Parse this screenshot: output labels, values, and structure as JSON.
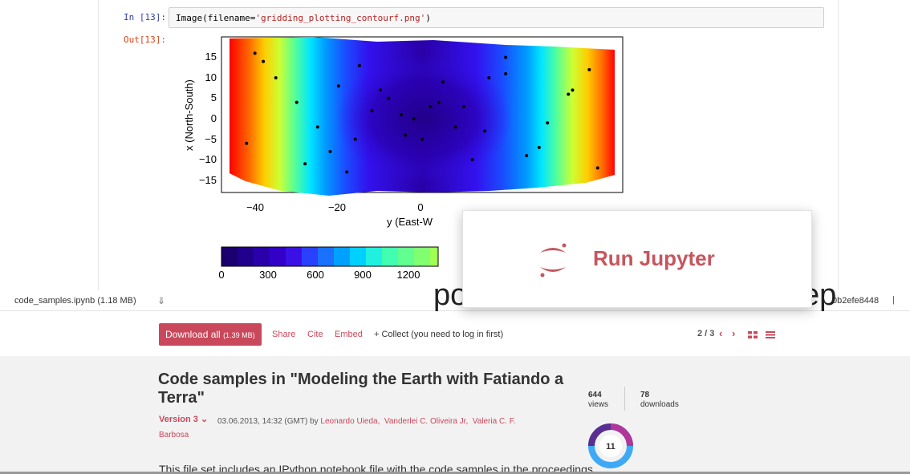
{
  "notebook": {
    "in_prompt": "In [13]:",
    "out_prompt": "Out[13]:",
    "code_prefix": "Image(filename=",
    "code_string": "'gridding_plotting_contourf.png'",
    "code_suffix": ")"
  },
  "plot": {
    "xlabel": "y (East-W",
    "ylabel": "x (North-South)",
    "xticks": [
      "−40",
      "−20",
      "0"
    ],
    "yticks": [
      "15",
      "10",
      "5",
      "0",
      "−5",
      "−10",
      "−15"
    ],
    "colorbar_ticks": [
      "0",
      "300",
      "600",
      "900",
      "1200"
    ]
  },
  "chart_data": {
    "type": "heatmap",
    "title": "",
    "xlabel": "y (East-W",
    "ylabel": "x (North-South)",
    "xlim": [
      -48,
      48
    ],
    "ylim": [
      -19,
      19
    ],
    "colorbar_range": [
      0,
      1500
    ],
    "colorbar_ticks": [
      0,
      300,
      600,
      900,
      1200
    ],
    "colormap": "jet",
    "grid": false,
    "points_x": [
      -40,
      -35,
      -30,
      -25,
      -22,
      -18,
      -15,
      -10,
      -5,
      0,
      5,
      10,
      15,
      20,
      25,
      30,
      35,
      40,
      -42,
      -38,
      -28,
      -20,
      -12,
      -4,
      4,
      12,
      20,
      28,
      36,
      42,
      -8,
      -2,
      2,
      8,
      -16,
      16
    ],
    "points_y": [
      15,
      9,
      3,
      -3,
      -9,
      -14,
      12,
      6,
      0,
      -6,
      8,
      2,
      -4,
      14,
      -10,
      -2,
      5,
      11,
      -7,
      13,
      -12,
      7,
      1,
      -5,
      3,
      -11,
      10,
      -8,
      6,
      -13,
      4,
      -1,
      2,
      -3,
      -6,
      9
    ]
  },
  "filebar": {
    "filename": "code_samples.ipynb",
    "size": "(1.18 MB)",
    "download_icon": "download-arrow-icon",
    "hash_fragment": "0b2efe8448",
    "separator": "|",
    "big_left": "po",
    "big_right": "ep"
  },
  "actions": {
    "download_all": "Download all",
    "download_size": "(1.39 MB)",
    "share": "Share",
    "cite": "Cite",
    "embed": "Embed",
    "collect": "+ Collect (you need to log in first)",
    "pager": "2 / 3"
  },
  "item": {
    "title": "Code samples in \"Modeling the Earth with Fatiando a Terra\"",
    "version": "Version 3",
    "date": "03.06.2013, 14:32 (GMT) by",
    "authors": [
      "Leonardo Uieda,",
      "Vanderlei C. Oliveira Jr,",
      "Valeria C. F. Barbosa"
    ],
    "views_count": "644",
    "views_label": "views",
    "downloads_count": "78",
    "downloads_label": "downloads",
    "altmetric_score": "11",
    "description": "This file set includes an IPython notebook file with the code samples in the proceedings"
  },
  "overlay": {
    "label": "Run Jupyter"
  },
  "colors": {
    "accent": "#c9485b",
    "overlay_text": "#c5565e"
  }
}
